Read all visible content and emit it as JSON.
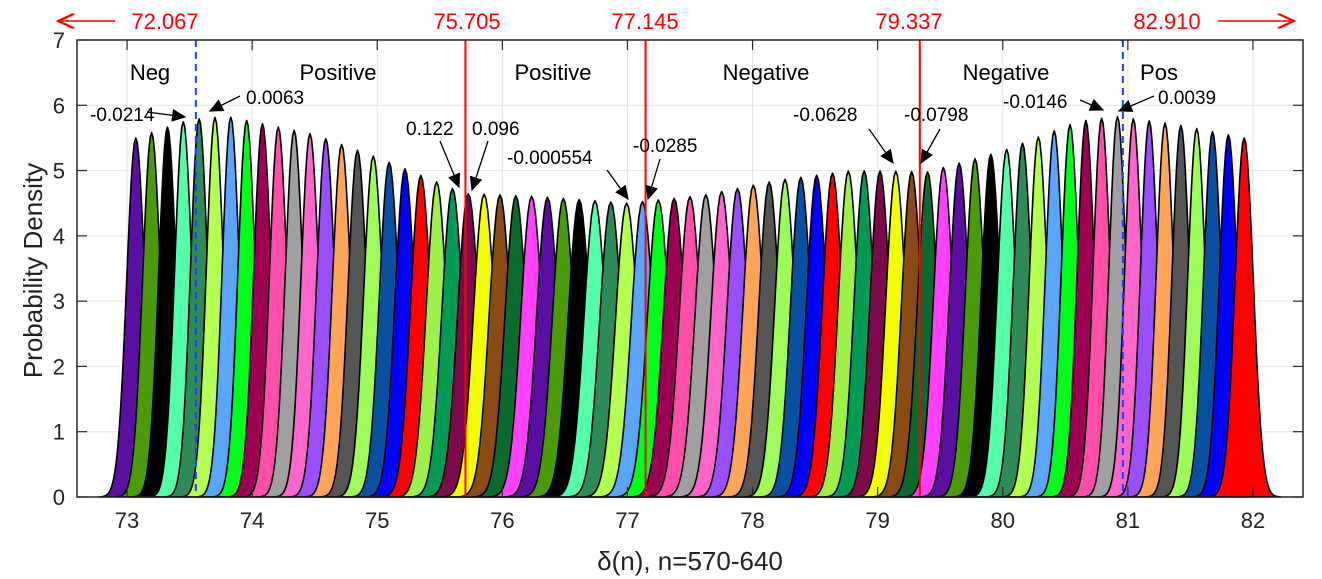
{
  "chart_data": {
    "type": "area",
    "xlabel": "δ(n), n=570-640",
    "ylabel": "Probability Density",
    "xlim": [
      72.6,
      82.4
    ],
    "ylim": [
      0,
      7
    ],
    "xticks": [
      73,
      74,
      75,
      76,
      77,
      78,
      79,
      80,
      81,
      82
    ],
    "yticks": [
      0,
      1,
      2,
      3,
      4,
      5,
      6,
      7
    ],
    "grid": true,
    "series_count": 71,
    "peak_start": 73.07,
    "peak_end": 81.93,
    "peak_heights_approx": [
      {
        "x": 73.07,
        "y": 5.5
      },
      {
        "x": 73.5,
        "y": 5.78
      },
      {
        "x": 73.8,
        "y": 5.83
      },
      {
        "x": 74.5,
        "y": 5.55
      },
      {
        "x": 75.0,
        "y": 5.2
      },
      {
        "x": 75.7,
        "y": 4.65
      },
      {
        "x": 76.3,
        "y": 4.6
      },
      {
        "x": 77.0,
        "y": 4.5
      },
      {
        "x": 77.6,
        "y": 4.62
      },
      {
        "x": 78.2,
        "y": 4.85
      },
      {
        "x": 78.8,
        "y": 5.0
      },
      {
        "x": 79.4,
        "y": 4.98
      },
      {
        "x": 80.0,
        "y": 5.3
      },
      {
        "x": 80.6,
        "y": 5.75
      },
      {
        "x": 80.9,
        "y": 5.83
      },
      {
        "x": 81.4,
        "y": 5.7
      },
      {
        "x": 81.93,
        "y": 5.5
      }
    ],
    "red_lines": [
      75.705,
      77.145,
      79.337
    ],
    "dashed_lines": [
      73.55,
      80.96
    ],
    "top_markers": [
      {
        "label": "72.067",
        "arrow": "left"
      },
      {
        "label": "75.705",
        "arrow": "none"
      },
      {
        "label": "77.145",
        "arrow": "none"
      },
      {
        "label": "79.337",
        "arrow": "none"
      },
      {
        "label": "82.910",
        "arrow": "right"
      }
    ],
    "regions": [
      "Neg",
      "Positive",
      "Positive",
      "Negative",
      "Negative",
      "Pos"
    ],
    "annotations": [
      "-0.0214",
      "0.0063",
      "0.122",
      "0.096",
      "-0.000554",
      "-0.0285",
      "-0.0628",
      "-0.0798",
      "-0.0146",
      "0.0039"
    ]
  },
  "colors": {
    "red": "#ff0000",
    "dashed": "#1f3fff",
    "palette": [
      "#5a0fa0",
      "#4a9a0a",
      "#000000",
      "#55ffaa",
      "#2e8b57",
      "#b4ff4f",
      "#5aa6ff",
      "#00ff1a",
      "#9b0052",
      "#ff4fa8",
      "#a0a0a0",
      "#ff66cc",
      "#9a4fff",
      "#ffa55a",
      "#555555",
      "#9efc5a",
      "#0a50a0",
      "#0000ff",
      "#ff0000",
      "#a0f04a",
      "#009a55",
      "#7a0a4a",
      "#f2ff00",
      "#8a4a14",
      "#0a6a30",
      "#ff40ff"
    ]
  }
}
